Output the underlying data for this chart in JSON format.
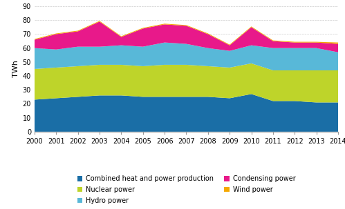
{
  "years": [
    2000,
    2001,
    2002,
    2003,
    2004,
    2005,
    2006,
    2007,
    2008,
    2009,
    2010,
    2011,
    2012,
    2013,
    2014
  ],
  "combined_heat": [
    23,
    24,
    25,
    26,
    26,
    25,
    25,
    25,
    25,
    24,
    27,
    22,
    22,
    21,
    21
  ],
  "nuclear": [
    22,
    22,
    22,
    22,
    22,
    22,
    23,
    23,
    22,
    22,
    22,
    22,
    22,
    23,
    23
  ],
  "hydro": [
    15,
    13,
    14,
    13,
    14,
    14,
    16,
    15,
    13,
    12,
    13,
    16,
    16,
    16,
    13
  ],
  "condensing": [
    6,
    11,
    11,
    18,
    6,
    13,
    13,
    13,
    10,
    4,
    13,
    5,
    4,
    4,
    6
  ],
  "wind": [
    0.5,
    0.5,
    0.5,
    0.5,
    0.5,
    0.5,
    0.5,
    0.5,
    0.5,
    0.5,
    0.5,
    0.5,
    0.5,
    0.5,
    1.0
  ],
  "color_combined": "#1a6ea6",
  "color_nuclear": "#bed42a",
  "color_hydro": "#58b8d8",
  "color_condensing": "#e8198a",
  "color_wind": "#f5a800",
  "ylabel": "TWh",
  "ylim": [
    0,
    90
  ],
  "yticks": [
    0,
    10,
    20,
    30,
    40,
    50,
    60,
    70,
    80,
    90
  ],
  "legend_combined": "Combined heat and power production",
  "legend_nuclear": "Nuclear power",
  "legend_hydro": "Hydro power",
  "legend_condensing": "Condensing power",
  "legend_wind": "Wind power",
  "bg_color": "#ffffff",
  "grid_color": "#cccccc"
}
